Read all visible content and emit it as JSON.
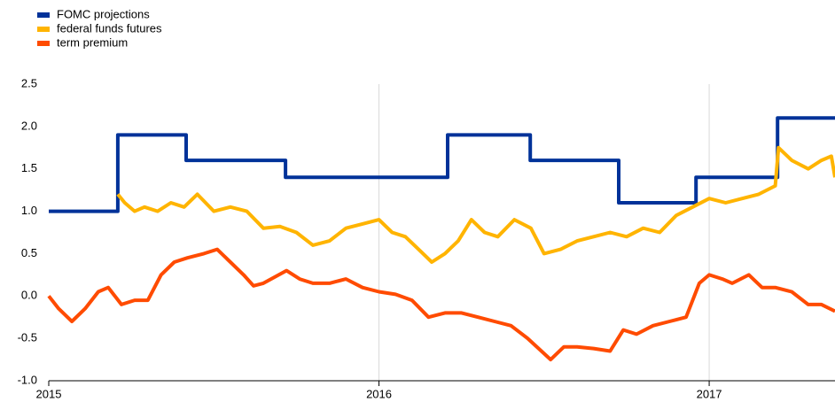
{
  "chart_data": {
    "type": "line",
    "xlim": [
      2015,
      2017.381
    ],
    "xticks": [
      2015,
      2016,
      2017
    ],
    "ylim": [
      -1,
      2.5
    ],
    "yticks": [
      {
        "value": -1,
        "label": "-1.0"
      },
      {
        "value": -0.5,
        "label": "-0.5"
      },
      {
        "value": 0,
        "label": "0.0"
      },
      {
        "value": 0.5,
        "label": "0.5"
      },
      {
        "value": 1,
        "label": "1.0"
      },
      {
        "value": 1.5,
        "label": "1.5"
      },
      {
        "value": 2,
        "label": "2.0"
      },
      {
        "value": 2.5,
        "label": "2.5"
      }
    ],
    "grid": true,
    "legend": "top-left",
    "series": [
      {
        "name": "FOMC projections",
        "color": "#003299",
        "x": [
          2015,
          2015.209,
          2015.209,
          2015.416,
          2015.416,
          2015.717,
          2015.717,
          2016.208,
          2016.208,
          2016.458,
          2016.458,
          2016.726,
          2016.726,
          2016.96,
          2016.96,
          2017.207,
          2017.207,
          2017.381
        ],
        "values": [
          1.0,
          1.0,
          1.9,
          1.9,
          1.6,
          1.6,
          1.4,
          1.4,
          1.9,
          1.9,
          1.6,
          1.6,
          1.1,
          1.1,
          1.4,
          1.4,
          2.1,
          2.1
        ]
      },
      {
        "name": "federal funds futures",
        "color": "#ffb400",
        "x": [
          2015.209,
          2015.23,
          2015.26,
          2015.29,
          2015.33,
          2015.37,
          2015.41,
          2015.45,
          2015.5,
          2015.55,
          2015.6,
          2015.65,
          2015.7,
          2015.75,
          2015.8,
          2015.85,
          2015.9,
          2015.95,
          2016.0,
          2016.04,
          2016.08,
          2016.12,
          2016.16,
          2016.2,
          2016.24,
          2016.28,
          2016.32,
          2016.36,
          2016.41,
          2016.46,
          2016.5,
          2016.55,
          2016.6,
          2016.65,
          2016.7,
          2016.75,
          2016.8,
          2016.85,
          2016.9,
          2016.95,
          2017.0,
          2017.05,
          2017.1,
          2017.15,
          2017.2,
          2017.21,
          2017.25,
          2017.3,
          2017.34,
          2017.37,
          2017.381
        ],
        "values": [
          1.2,
          1.1,
          1.0,
          1.05,
          1.0,
          1.1,
          1.05,
          1.2,
          1.0,
          1.05,
          1.0,
          0.8,
          0.82,
          0.75,
          0.6,
          0.65,
          0.8,
          0.85,
          0.9,
          0.75,
          0.7,
          0.55,
          0.4,
          0.5,
          0.65,
          0.9,
          0.75,
          0.7,
          0.9,
          0.8,
          0.5,
          0.55,
          0.65,
          0.7,
          0.75,
          0.7,
          0.8,
          0.75,
          0.95,
          1.05,
          1.15,
          1.1,
          1.15,
          1.2,
          1.3,
          1.75,
          1.6,
          1.5,
          1.6,
          1.65,
          1.4
        ]
      },
      {
        "name": "term premium",
        "color": "#ff4b00",
        "x": [
          2015,
          2015.03,
          2015.07,
          2015.11,
          2015.15,
          2015.18,
          2015.22,
          2015.26,
          2015.3,
          2015.34,
          2015.38,
          2015.42,
          2015.47,
          2015.51,
          2015.55,
          2015.59,
          2015.62,
          2015.65,
          2015.72,
          2015.76,
          2015.8,
          2015.85,
          2015.9,
          2015.95,
          2016.0,
          2016.05,
          2016.1,
          2016.15,
          2016.2,
          2016.25,
          2016.3,
          2016.35,
          2016.4,
          2016.45,
          2016.52,
          2016.56,
          2016.6,
          2016.65,
          2016.7,
          2016.74,
          2016.78,
          2016.83,
          2016.88,
          2016.93,
          2016.97,
          2017.0,
          2017.04,
          2017.07,
          2017.12,
          2017.16,
          2017.2,
          2017.25,
          2017.3,
          2017.34,
          2017.381
        ],
        "values": [
          0.0,
          -0.15,
          -0.3,
          -0.15,
          0.05,
          0.1,
          -0.1,
          -0.05,
          -0.05,
          0.25,
          0.4,
          0.45,
          0.5,
          0.55,
          0.4,
          0.25,
          0.12,
          0.15,
          0.3,
          0.2,
          0.15,
          0.15,
          0.2,
          0.1,
          0.05,
          0.02,
          -0.05,
          -0.25,
          -0.2,
          -0.2,
          -0.25,
          -0.3,
          -0.35,
          -0.5,
          -0.75,
          -0.6,
          -0.6,
          -0.62,
          -0.65,
          -0.4,
          -0.45,
          -0.35,
          -0.3,
          -0.25,
          0.15,
          0.25,
          0.2,
          0.15,
          0.25,
          0.1,
          0.1,
          0.05,
          -0.1,
          -0.1,
          -0.18
        ]
      }
    ]
  }
}
